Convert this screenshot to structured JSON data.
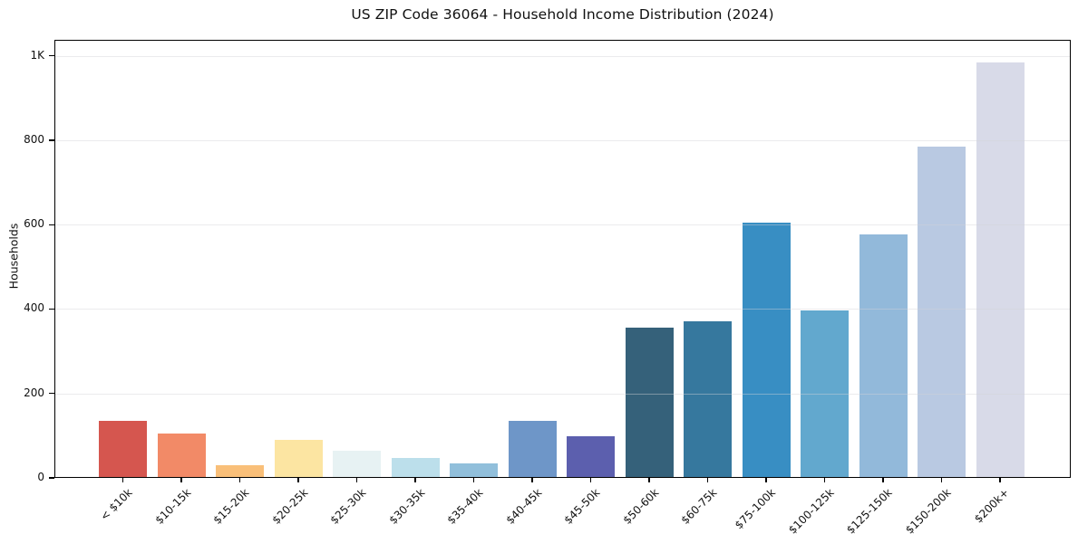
{
  "chart_data": {
    "type": "bar",
    "title": "US ZIP Code 36064 - Household Income Distribution (2024)",
    "xlabel": "",
    "ylabel": "Households",
    "categories": [
      "< $10k",
      "$10-15k",
      "$15-20k",
      "$20-25k",
      "$25-30k",
      "$30-35k",
      "$35-40k",
      "$40-45k",
      "$45-50k",
      "$50-60k",
      "$60-75k",
      "$75-100k",
      "$100-125k",
      "$125-150k",
      "$150-200k",
      "$200k+"
    ],
    "values": [
      135,
      106,
      29,
      90,
      64,
      47,
      35,
      135,
      98,
      355,
      372,
      604,
      396,
      578,
      786,
      985
    ],
    "bar_colors": [
      "#d5564f",
      "#f28a67",
      "#f9bf79",
      "#fce5a2",
      "#e7f2f3",
      "#bcdfeb",
      "#91bfdb",
      "#6e96c8",
      "#5c5fae",
      "#35617a",
      "#36789e",
      "#388ec3",
      "#62a8ce",
      "#92b9da",
      "#b9c9e2",
      "#d8dae8"
    ],
    "ylim": [
      0,
      1038
    ],
    "yticks": [
      {
        "value": 0,
        "label": "0"
      },
      {
        "value": 200,
        "label": "200"
      },
      {
        "value": 400,
        "label": "400"
      },
      {
        "value": 600,
        "label": "600"
      },
      {
        "value": 800,
        "label": "800"
      },
      {
        "value": 1000,
        "label": "1K"
      }
    ],
    "grid": "horizontal",
    "legend": false,
    "background": "#ffffff",
    "axis_color": "#000000"
  }
}
